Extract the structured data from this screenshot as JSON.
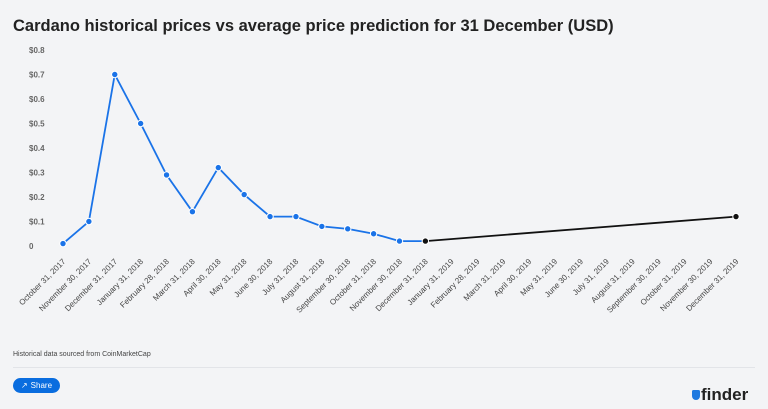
{
  "header": {
    "title": "Cardano historical prices vs average price prediction for 31 December (USD)"
  },
  "footer": {
    "source": "Historical data sourced from CoinMarketCap",
    "share_label": "Share",
    "share_icon": "share-icon",
    "logo": "finder"
  },
  "chart_data": {
    "type": "line",
    "title": "Cardano historical prices vs average price prediction for 31 December (USD)",
    "categories": [
      "October 31, 2017",
      "November 30, 2017",
      "December 31, 2017",
      "January 31, 2018",
      "February 28, 2018",
      "March 31, 2018",
      "April 30, 2018",
      "May 31, 2018",
      "June 30, 2018",
      "July 31, 2018",
      "August 31, 2018",
      "September 30, 2018",
      "October 31, 2018",
      "November 30, 2018",
      "December 31, 2018",
      "January 31, 2019",
      "February 28, 2019",
      "March 31, 2019",
      "April 30, 2019",
      "May 31, 2019",
      "June 30, 2019",
      "July 31, 2019",
      "August 31, 2019",
      "September 30, 2019",
      "October 31, 2019",
      "November 30, 2019",
      "December 31, 2019"
    ],
    "yticks": [
      "0",
      "$0.1",
      "$0.2",
      "$0.3",
      "$0.4",
      "$0.5",
      "$0.6",
      "$0.7",
      "$0.8"
    ],
    "ylim": [
      0,
      0.8
    ],
    "grid": false,
    "series": [
      {
        "color": "#1a73e8",
        "values": [
          0.01,
          0.1,
          0.7,
          0.5,
          0.29,
          0.14,
          0.32,
          0.21,
          0.12,
          0.12,
          0.08,
          0.07,
          0.05,
          0.02,
          0.02,
          null,
          null,
          null,
          null,
          null,
          null,
          null,
          null,
          null,
          null,
          null,
          null
        ]
      },
      {
        "color": "#111111",
        "values": [
          null,
          null,
          null,
          null,
          null,
          null,
          null,
          null,
          null,
          null,
          null,
          null,
          null,
          null,
          0.02,
          null,
          null,
          null,
          null,
          null,
          null,
          null,
          null,
          null,
          null,
          null,
          0.12
        ]
      }
    ]
  }
}
